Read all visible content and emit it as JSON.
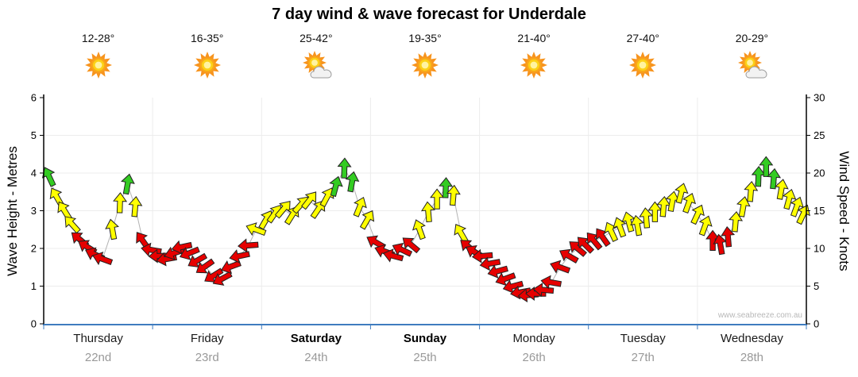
{
  "title": "7 day wind & wave forecast for Underdale",
  "watermark": "www.seabreeze.com.au",
  "days": [
    {
      "name": "Thursday",
      "date": "22nd",
      "temp": "12-28°",
      "icon": "sunny",
      "bold": false
    },
    {
      "name": "Friday",
      "date": "23rd",
      "temp": "16-35°",
      "icon": "sunny",
      "bold": false
    },
    {
      "name": "Saturday",
      "date": "24th",
      "temp": "25-42°",
      "icon": "partly-cloudy",
      "bold": true
    },
    {
      "name": "Sunday",
      "date": "25th",
      "temp": "19-35°",
      "icon": "sunny",
      "bold": true
    },
    {
      "name": "Monday",
      "date": "26th",
      "temp": "21-40°",
      "icon": "sunny",
      "bold": false
    },
    {
      "name": "Tuesday",
      "date": "27th",
      "temp": "27-40°",
      "icon": "sunny",
      "bold": false
    },
    {
      "name": "Wednesday",
      "date": "28th",
      "temp": "20-29°",
      "icon": "partly-cloudy",
      "bold": false
    }
  ],
  "chart_data": {
    "type": "wind-arrow-series",
    "title": "7 day wind & wave forecast for Underdale",
    "ylabel_left": "Wave Height - Metres",
    "ylim_left": [
      0,
      6
    ],
    "yticks_left": [
      0,
      1,
      2,
      3,
      4,
      5,
      6
    ],
    "ylabel_right": "Wind Speed - Knots",
    "ylim_right": [
      0,
      30
    ],
    "yticks_right": [
      0,
      5,
      10,
      15,
      20,
      25,
      30
    ],
    "x_days": [
      "Thursday",
      "Friday",
      "Saturday",
      "Sunday",
      "Monday",
      "Tuesday",
      "Wednesday"
    ],
    "legend": "arrow color encodes wind speed; arrow rotation encodes wind direction",
    "colors": {
      "red": "#e60000",
      "yellow": "#ffff00",
      "green": "#33cc22"
    },
    "thresholds_knots": {
      "yellow": 12,
      "green": 18
    },
    "axis_color_bottom": "#3f7cbf",
    "grid": true,
    "points_format": [
      "day_fraction_0_to_7",
      "wind_knots",
      "arrow_rotation_deg"
    ],
    "points": [
      [
        0.05,
        19.5,
        -115
      ],
      [
        0.12,
        16.8,
        -120
      ],
      [
        0.19,
        15.0,
        -122
      ],
      [
        0.26,
        13.2,
        -132
      ],
      [
        0.33,
        11.2,
        -140
      ],
      [
        0.4,
        10.2,
        -148
      ],
      [
        0.47,
        9.2,
        -155
      ],
      [
        0.54,
        8.6,
        -160
      ],
      [
        0.63,
        12.5,
        -100
      ],
      [
        0.7,
        16.0,
        -88
      ],
      [
        0.77,
        18.5,
        -80
      ],
      [
        0.84,
        15.5,
        -85
      ],
      [
        0.91,
        11.0,
        -125
      ],
      [
        0.99,
        9.8,
        -170
      ],
      [
        1.06,
        9.0,
        178
      ],
      [
        1.13,
        8.6,
        170
      ],
      [
        1.2,
        9.4,
        162
      ],
      [
        1.27,
        10.2,
        168
      ],
      [
        1.34,
        9.4,
        158
      ],
      [
        1.41,
        8.4,
        150
      ],
      [
        1.48,
        7.6,
        145
      ],
      [
        1.56,
        6.4,
        148
      ],
      [
        1.64,
        6.0,
        152
      ],
      [
        1.72,
        7.6,
        160
      ],
      [
        1.8,
        9.0,
        168
      ],
      [
        1.88,
        10.4,
        176
      ],
      [
        1.95,
        12.5,
        -160
      ],
      [
        2.04,
        13.8,
        -60
      ],
      [
        2.12,
        14.6,
        -55
      ],
      [
        2.2,
        15.2,
        -50
      ],
      [
        2.28,
        14.4,
        -58
      ],
      [
        2.36,
        15.8,
        -48
      ],
      [
        2.44,
        16.4,
        -52
      ],
      [
        2.52,
        15.2,
        -56
      ],
      [
        2.6,
        16.8,
        -62
      ],
      [
        2.68,
        18.2,
        -75
      ],
      [
        2.76,
        20.6,
        -88
      ],
      [
        2.83,
        18.8,
        -80
      ],
      [
        2.9,
        15.5,
        -68
      ],
      [
        2.97,
        13.8,
        -60
      ],
      [
        3.05,
        10.8,
        -150
      ],
      [
        3.13,
        9.6,
        -160
      ],
      [
        3.21,
        9.0,
        -165
      ],
      [
        3.29,
        9.8,
        -155
      ],
      [
        3.37,
        10.5,
        -140
      ],
      [
        3.45,
        12.5,
        -110
      ],
      [
        3.53,
        14.8,
        -95
      ],
      [
        3.61,
        16.5,
        -90
      ],
      [
        3.69,
        18.0,
        -88
      ],
      [
        3.76,
        17.0,
        -85
      ],
      [
        3.83,
        12.0,
        -120
      ],
      [
        3.9,
        10.2,
        -140
      ],
      [
        3.96,
        9.5,
        -150
      ],
      [
        4.03,
        9.0,
        175
      ],
      [
        4.1,
        8.0,
        170
      ],
      [
        4.17,
        7.0,
        165
      ],
      [
        4.24,
        6.0,
        160
      ],
      [
        4.31,
        5.0,
        165
      ],
      [
        4.38,
        4.2,
        170
      ],
      [
        4.45,
        3.8,
        175
      ],
      [
        4.52,
        4.0,
        180
      ],
      [
        4.59,
        4.5,
        -175
      ],
      [
        4.66,
        5.5,
        -170
      ],
      [
        4.74,
        7.5,
        -160
      ],
      [
        4.82,
        9.0,
        -150
      ],
      [
        4.9,
        10.0,
        -140
      ],
      [
        4.97,
        10.5,
        -135
      ],
      [
        5.05,
        11.0,
        -130
      ],
      [
        5.13,
        11.5,
        -125
      ],
      [
        5.21,
        12.2,
        -115
      ],
      [
        5.29,
        12.8,
        -110
      ],
      [
        5.37,
        13.5,
        -105
      ],
      [
        5.45,
        13.0,
        -100
      ],
      [
        5.53,
        14.0,
        -95
      ],
      [
        5.61,
        14.8,
        -90
      ],
      [
        5.69,
        15.5,
        -85
      ],
      [
        5.77,
        16.2,
        -80
      ],
      [
        5.85,
        17.3,
        -75
      ],
      [
        5.92,
        16.0,
        -70
      ],
      [
        6.0,
        14.5,
        -65
      ],
      [
        6.07,
        13.0,
        -70
      ],
      [
        6.14,
        11.0,
        -90
      ],
      [
        6.21,
        10.5,
        -100
      ],
      [
        6.28,
        11.5,
        -95
      ],
      [
        6.35,
        13.5,
        -85
      ],
      [
        6.42,
        15.5,
        -80
      ],
      [
        6.49,
        17.5,
        -85
      ],
      [
        6.56,
        19.5,
        -88
      ],
      [
        6.63,
        20.8,
        -90
      ],
      [
        6.7,
        19.2,
        -85
      ],
      [
        6.77,
        17.8,
        -80
      ],
      [
        6.84,
        16.5,
        -75
      ],
      [
        6.91,
        15.5,
        -70
      ],
      [
        6.97,
        14.5,
        -65
      ]
    ]
  }
}
